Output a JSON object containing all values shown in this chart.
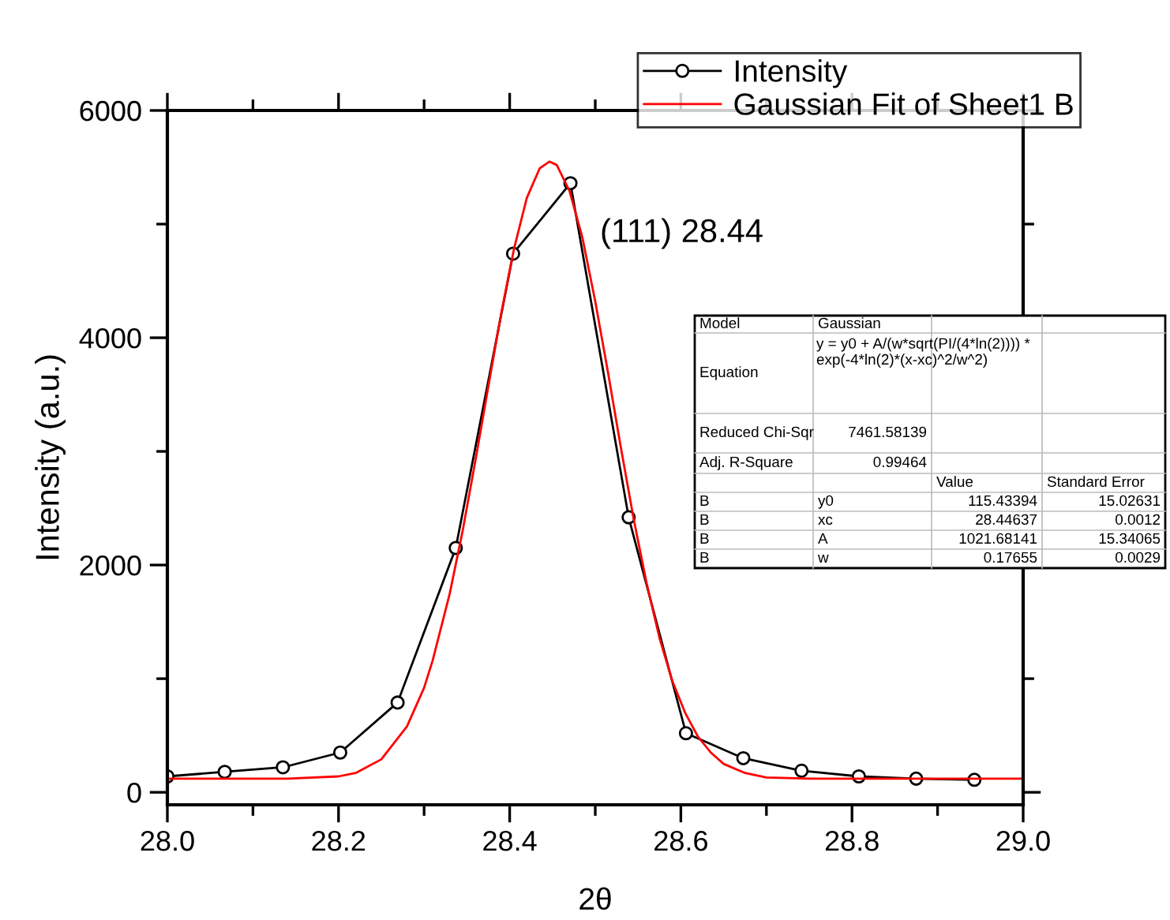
{
  "chart_data": {
    "type": "line",
    "xlabel": "2θ",
    "ylabel": "Intensity (a.u.)",
    "xlim": [
      28.0,
      29.0
    ],
    "xticks": [
      {
        "value": 28.0,
        "label": "28.0"
      },
      28.2,
      28.4,
      28.6,
      28.8,
      {
        "value": 29.0,
        "label": "29.0"
      }
    ],
    "ylim": [
      -110,
      6000
    ],
    "yticks": [
      0,
      2000,
      4000,
      6000
    ],
    "grid": false,
    "legend": "top right",
    "series": [
      {
        "name": "Intensity",
        "color": "#000000",
        "marker": "circle",
        "x": [
          28.0,
          28.067,
          28.135,
          28.202,
          28.269,
          28.337,
          28.404,
          28.471,
          28.539,
          28.606,
          28.673,
          28.741,
          28.808,
          28.875,
          28.943
        ],
        "values": [
          140,
          180,
          220,
          350,
          790,
          2150,
          4740,
          5360,
          2420,
          520,
          300,
          190,
          140,
          120,
          110
        ]
      },
      {
        "name": "Gaussian Fit of Sheet1 B",
        "color": "#ff0000",
        "marker": "none",
        "x": [
          28.0,
          28.1,
          28.14,
          28.2,
          28.22,
          28.25,
          28.28,
          28.3,
          28.31,
          28.33,
          28.345,
          28.36,
          28.375,
          28.39,
          28.405,
          28.42,
          28.435,
          28.44637,
          28.455,
          28.47,
          28.485,
          28.5,
          28.515,
          28.53,
          28.545,
          28.56,
          28.575,
          28.59,
          28.605,
          28.62,
          28.635,
          28.65,
          28.675,
          28.7,
          28.75,
          28.8,
          29.0
        ],
        "values": [
          120,
          120,
          120,
          140,
          170,
          290,
          580,
          920,
          1160,
          1750,
          2300,
          2920,
          3570,
          4210,
          4780,
          5230,
          5490,
          5550,
          5520,
          5290,
          4880,
          4320,
          3690,
          3030,
          2400,
          1840,
          1360,
          980,
          700,
          490,
          350,
          250,
          170,
          130,
          120,
          120,
          120
        ]
      }
    ],
    "annotations": [
      "(111) 28.44",
      "Model",
      "Gaussian",
      "Equation",
      "y = y0 + A/(w*sqrt(PI/(4*ln(2)))) * exp(-4*ln(2)*(x-xc)^2/w^2)",
      "Reduced Chi-Sqr",
      "7461.58139",
      "Adj. R-Square",
      "0.99464",
      "Value",
      "Standard Error",
      "B",
      "y0",
      "115.43394",
      "15.02631",
      "B",
      "xc",
      "28.44637",
      "0.0012",
      "B",
      "A",
      "1021.68141",
      "15.34065",
      "B",
      "w",
      "0.17655",
      "0.0029"
    ]
  }
}
